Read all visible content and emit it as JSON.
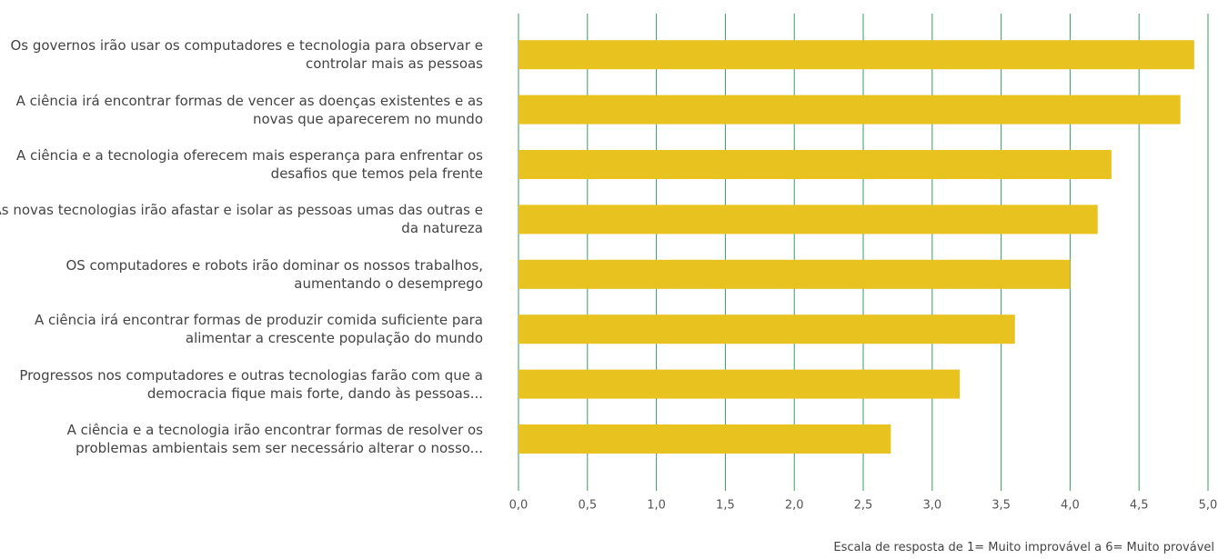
{
  "chart_data": {
    "type": "barh",
    "note": "Escala de resposta de 1= Muito improvável a 6= Muito provável",
    "categories": [
      "Os governos irão usar os computadores e tecnologia para observar e controlar mais as pessoas",
      "A ciência irá encontrar formas de vencer as doenças existentes e as novas que aparecerem no mundo",
      "A ciência e a tecnologia oferecem mais esperança para enfrentar os desafios que temos pela frente",
      "As novas tecnologias irão afastar e isolar as pessoas umas das outras e da natureza",
      "OS computadores e robots irão dominar os nossos trabalhos, aumentando o desemprego",
      "A ciência irá encontrar formas de produzir comida suficiente para alimentar a crescente população do mundo",
      "Progressos nos computadores e outras tecnologias farão com que a democracia fique mais forte, dando às pessoas...",
      "A ciência e a tecnologia irão encontrar formas de resolver os problemas ambientais sem ser necessário alterar o nosso..."
    ],
    "values": [
      4.9,
      4.8,
      4.3,
      4.2,
      4.0,
      3.6,
      3.2,
      2.7
    ],
    "color": "#e8c21e",
    "grid_color": "#3a9a5e",
    "xlim": [
      0,
      5
    ],
    "xticks": [
      {
        "value": 0,
        "label": "0,0"
      },
      {
        "value": 0.5,
        "label": "0,5"
      },
      {
        "value": 1,
        "label": "1,0"
      },
      {
        "value": 1.5,
        "label": "1,5"
      },
      {
        "value": 2,
        "label": "2,0"
      },
      {
        "value": 2.5,
        "label": "2,5"
      },
      {
        "value": 3,
        "label": "3,0"
      },
      {
        "value": 3.5,
        "label": "3,5"
      },
      {
        "value": 4,
        "label": "4,0"
      },
      {
        "value": 4.5,
        "label": "4,5"
      },
      {
        "value": 5,
        "label": "5,0"
      }
    ],
    "grid": true
  }
}
